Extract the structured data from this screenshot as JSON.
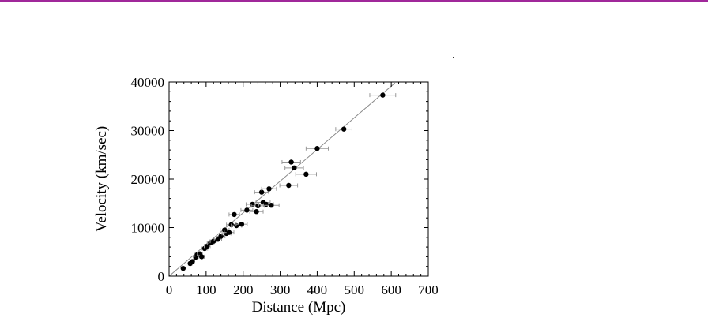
{
  "slide": {
    "accent_color": "#a0289a"
  },
  "chart_data": {
    "type": "scatter",
    "title": "",
    "xlabel": "Distance (Mpc)",
    "ylabel": "Velocity (km/sec)",
    "xlim": [
      0,
      700
    ],
    "ylim": [
      0,
      40000
    ],
    "xticks": [
      0,
      100,
      200,
      300,
      400,
      500,
      600,
      700
    ],
    "yticks": [
      0,
      10000,
      20000,
      30000,
      40000
    ],
    "xtick_labels": [
      "0",
      "100",
      "200",
      "300",
      "400",
      "500",
      "600",
      "700"
    ],
    "ytick_labels": [
      "0",
      "10000",
      "20000",
      "30000",
      "40000"
    ],
    "grid": false,
    "legend": "none",
    "fit_line": {
      "x": [
        0,
        610
      ],
      "y": [
        0,
        39800
      ]
    },
    "series": [
      {
        "marker_color": "#000000",
        "points": [
          {
            "x": 38,
            "y": 1600,
            "xerr": 4
          },
          {
            "x": 57,
            "y": 2600,
            "xerr": 5
          },
          {
            "x": 63,
            "y": 3000,
            "xerr": 5
          },
          {
            "x": 72,
            "y": 3900,
            "xerr": 6
          },
          {
            "x": 76,
            "y": 4400,
            "xerr": 6
          },
          {
            "x": 83,
            "y": 4600,
            "xerr": 7
          },
          {
            "x": 88,
            "y": 4000,
            "xerr": 7
          },
          {
            "x": 96,
            "y": 5700,
            "xerr": 8
          },
          {
            "x": 103,
            "y": 6200,
            "xerr": 8
          },
          {
            "x": 112,
            "y": 6900,
            "xerr": 9
          },
          {
            "x": 120,
            "y": 7200,
            "xerr": 9
          },
          {
            "x": 132,
            "y": 7600,
            "xerr": 10
          },
          {
            "x": 140,
            "y": 8200,
            "xerr": 11
          },
          {
            "x": 150,
            "y": 9500,
            "xerr": 12
          },
          {
            "x": 155,
            "y": 8800,
            "xerr": 12
          },
          {
            "x": 162,
            "y": 9000,
            "xerr": 13
          },
          {
            "x": 168,
            "y": 10600,
            "xerr": 13
          },
          {
            "x": 176,
            "y": 12700,
            "xerr": 14
          },
          {
            "x": 182,
            "y": 10400,
            "xerr": 14
          },
          {
            "x": 196,
            "y": 10700,
            "xerr": 15
          },
          {
            "x": 210,
            "y": 13600,
            "xerr": 16
          },
          {
            "x": 225,
            "y": 14800,
            "xerr": 17
          },
          {
            "x": 236,
            "y": 13300,
            "xerr": 18
          },
          {
            "x": 240,
            "y": 14500,
            "xerr": 18
          },
          {
            "x": 250,
            "y": 17300,
            "xerr": 19
          },
          {
            "x": 254,
            "y": 15200,
            "xerr": 19
          },
          {
            "x": 262,
            "y": 14800,
            "xerr": 20
          },
          {
            "x": 270,
            "y": 18000,
            "xerr": 20
          },
          {
            "x": 276,
            "y": 14600,
            "xerr": 21
          },
          {
            "x": 323,
            "y": 18700,
            "xerr": 24
          },
          {
            "x": 330,
            "y": 23500,
            "xerr": 25
          },
          {
            "x": 338,
            "y": 22300,
            "xerr": 25
          },
          {
            "x": 370,
            "y": 21000,
            "xerr": 28
          },
          {
            "x": 400,
            "y": 26300,
            "xerr": 30
          },
          {
            "x": 472,
            "y": 30300,
            "xerr": 22
          },
          {
            "x": 577,
            "y": 37300,
            "xerr": 35
          }
        ]
      }
    ]
  }
}
